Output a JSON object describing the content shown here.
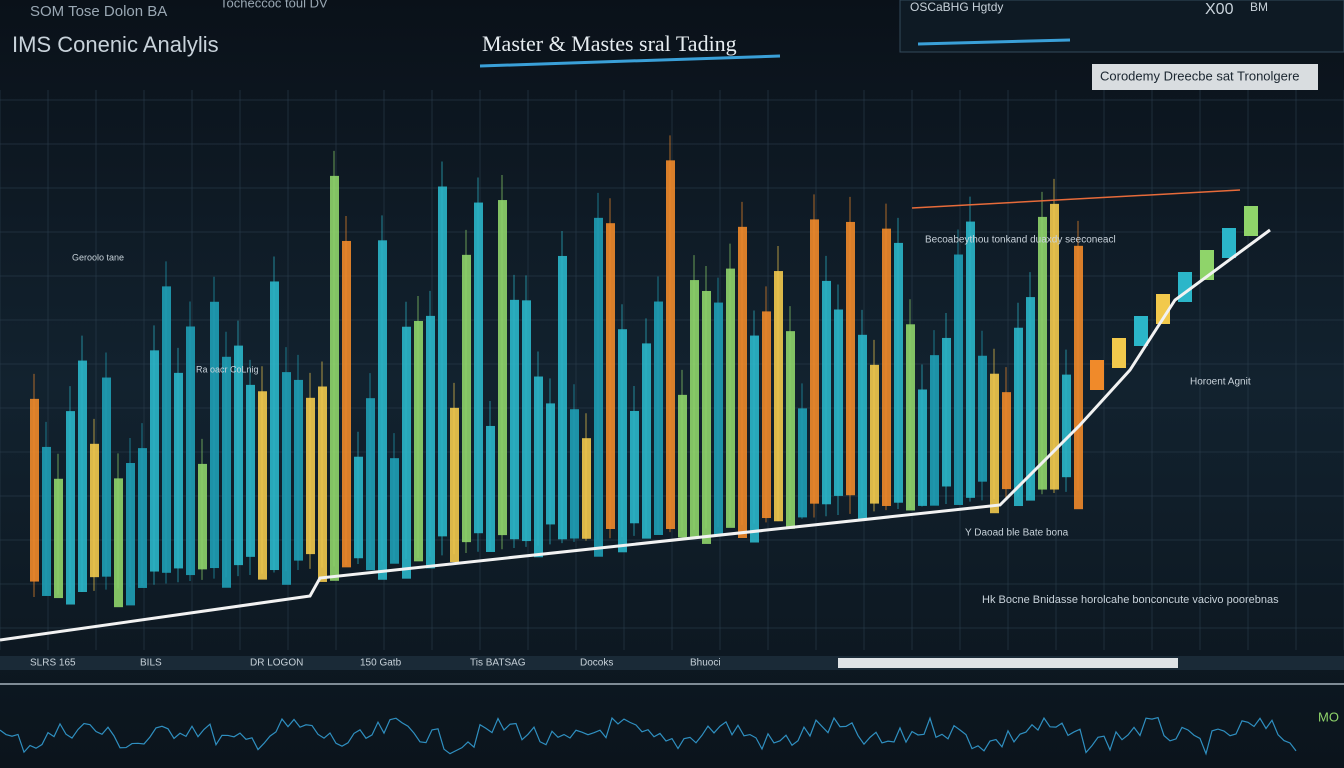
{
  "header": {
    "ticker": "SOM Tose Dolon BA",
    "ticker2": "Tocheccoc toul DV",
    "title": "IMS Conenic Analylis",
    "headline": "Master & Mastes sral Tading",
    "subtitle": "Corodemy Dreecbe sat Tronolgere"
  },
  "top_panel": {
    "label": "OSCaBHG Hgtdy",
    "value": "X00",
    "unit": "BM"
  },
  "annotations": [
    {
      "text": "Becoabeythou tonkand duaxdy seeconeacl"
    },
    {
      "text": "Horoent Agnit"
    },
    {
      "text": "Geroolo tane"
    },
    {
      "text": "Ra oacr CoLnig"
    },
    {
      "text": "Hk Bocne Bnidasse horolcahe bonconcute vacivo poorebnas"
    },
    {
      "text": "Y Daoad ble Bate bona"
    }
  ],
  "footer": {
    "tape": [
      "SLRS 165",
      "BILS",
      "DR LOGON",
      "150 Gatb",
      "Tis BATSAG",
      "Docoks",
      "Bhuoci"
    ],
    "tag": "MO"
  }
}
